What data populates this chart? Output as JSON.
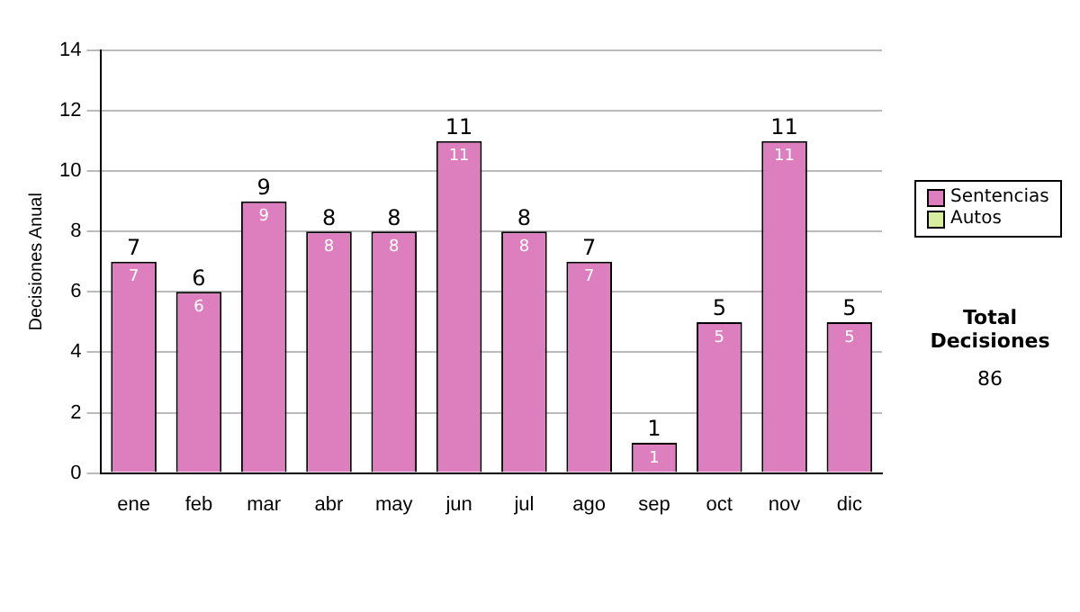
{
  "chart_data": {
    "type": "bar",
    "stacked": true,
    "ylabel": "Decisiones Anual",
    "categories": [
      "ene",
      "feb",
      "mar",
      "abr",
      "may",
      "jun",
      "jul",
      "ago",
      "sep",
      "oct",
      "nov",
      "dic"
    ],
    "series": [
      {
        "name": "Sentencias",
        "color": "#dd7fbf",
        "values": [
          7,
          6,
          9,
          8,
          8,
          11,
          8,
          7,
          1,
          5,
          11,
          5
        ],
        "value_labels": [
          "7",
          "6",
          "9",
          "8",
          "8",
          "11",
          "8",
          "7",
          "1",
          "5",
          "11",
          "5"
        ]
      },
      {
        "name": "Autos",
        "color": "#d8eca0",
        "values": [
          null,
          null,
          null,
          null,
          null,
          null,
          null,
          null,
          null,
          null,
          null,
          null
        ]
      }
    ],
    "totals": [
      "7",
      "6",
      "9",
      "8",
      "8",
      "11",
      "8",
      "7",
      "1",
      "5",
      "11",
      "5"
    ],
    "ylim": [
      0,
      14
    ],
    "yticks": [
      0,
      2,
      4,
      6,
      8,
      10,
      12,
      14
    ],
    "grid": "y",
    "legend": "right",
    "annotations": [
      "Total Decisiones",
      "86"
    ]
  }
}
